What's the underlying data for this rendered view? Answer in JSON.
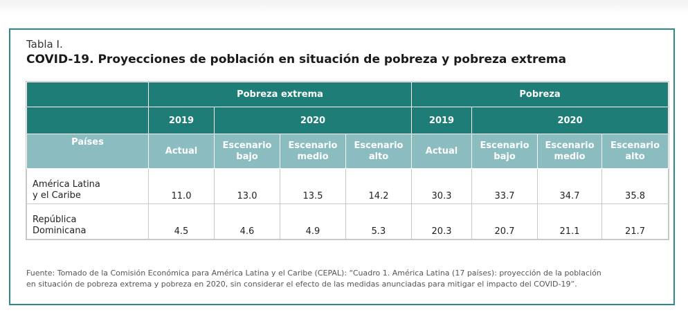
{
  "label": "Tabla I.",
  "title": "COVID-19. Proyecciones de población en situación de pobreza y pobreza extrema",
  "groups": {
    "extreme": "Pobreza extrema",
    "poverty": "Pobreza"
  },
  "years": {
    "y2019": "2019",
    "y2020": "2020"
  },
  "columns": {
    "countries": "Países",
    "actual": "Actual",
    "bajo": "Escenario bajo",
    "medio": "Escenario medio",
    "alto": "Escenario alto"
  },
  "rows": [
    {
      "country_line1": "América Latina",
      "country_line2": "y el Caribe",
      "values": [
        "11.0",
        "13.0",
        "13.5",
        "14.2",
        "30.3",
        "33.7",
        "34.7",
        "35.8"
      ]
    },
    {
      "country_line1": "República",
      "country_line2": "Dominicana",
      "values": [
        "4.5",
        "4.6",
        "4.9",
        "5.3",
        "20.3",
        "20.7",
        "21.1",
        "21.7"
      ]
    }
  ],
  "source_line1": "Fuente: Tomado de la Comisión Económica para América Latina y el Caribe (CEPAL): “Cuadro 1. América Latina (17 países): proyección de la población",
  "source_line2": "en situación de pobreza extrema y pobreza en 2020, sin considerar el efecto de las medidas anunciadas para mitigar el impacto del COVID-19”."
}
